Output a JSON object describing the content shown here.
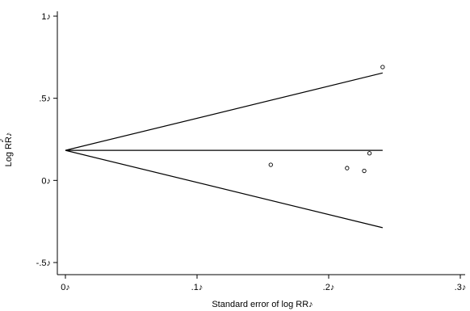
{
  "chart_data": {
    "type": "scatter",
    "title": "",
    "xlabel": "Standard error of log RR♪",
    "ylabel": "Log RR♪",
    "ylabel_extra": "♪",
    "xlim": [
      0,
      0.3
    ],
    "ylim": [
      -0.5,
      1
    ],
    "x_ticks": [
      0,
      0.1,
      0.2,
      0.3
    ],
    "x_tick_labels": [
      "0♪",
      ".1♪",
      ".2♪",
      ".3♪"
    ],
    "y_ticks": [
      -0.5,
      0,
      0.5,
      1
    ],
    "y_tick_labels": [
      "-.5♪",
      "0♪",
      ".5♪",
      "1♪"
    ],
    "grid": false,
    "points": [
      {
        "x": 0.156,
        "y": 0.095
      },
      {
        "x": 0.214,
        "y": 0.075
      },
      {
        "x": 0.227,
        "y": 0.058
      },
      {
        "x": 0.231,
        "y": 0.165
      },
      {
        "x": 0.241,
        "y": 0.69
      }
    ],
    "lines": [
      {
        "role": "pooled-estimate",
        "x": [
          0,
          0.241
        ],
        "y": [
          0.183,
          0.183
        ]
      },
      {
        "role": "upper-limit",
        "x": [
          0,
          0.241
        ],
        "y": [
          0.183,
          0.654
        ]
      },
      {
        "role": "lower-limit",
        "x": [
          0,
          0.241
        ],
        "y": [
          0.183,
          -0.288
        ]
      }
    ]
  }
}
